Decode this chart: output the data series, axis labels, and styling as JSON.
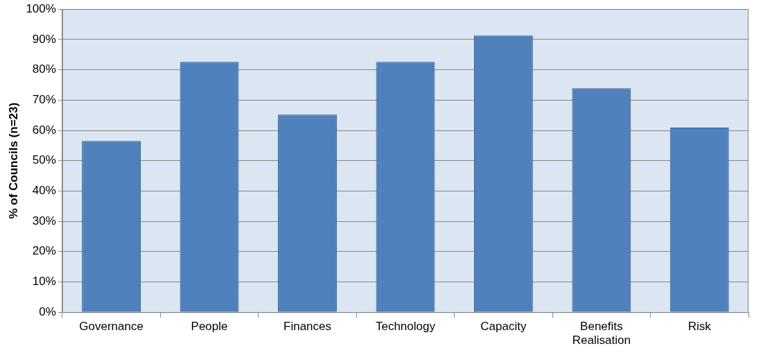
{
  "chart_data": {
    "type": "bar",
    "ylabel": "% of Councils (n=23)",
    "categories": [
      "Governance",
      "People",
      "Finances",
      "Technology",
      "Capacity",
      "Benefits Realisation",
      "Risk"
    ],
    "values": [
      56.5,
      82.6,
      65.2,
      82.6,
      91.3,
      73.9,
      60.9
    ],
    "color": "#4f81bd",
    "ylim": [
      0,
      100
    ],
    "yticks": [
      {
        "value": 0,
        "label": "0%"
      },
      {
        "value": 10,
        "label": "10%"
      },
      {
        "value": 20,
        "label": "20%"
      },
      {
        "value": 30,
        "label": "30%"
      },
      {
        "value": 40,
        "label": "40%"
      },
      {
        "value": 50,
        "label": "50%"
      },
      {
        "value": 60,
        "label": "60%"
      },
      {
        "value": 70,
        "label": "70%"
      },
      {
        "value": 80,
        "label": "80%"
      },
      {
        "value": 90,
        "label": "90%"
      },
      {
        "value": 100,
        "label": "100%"
      }
    ],
    "grid": "y",
    "legend": false
  }
}
